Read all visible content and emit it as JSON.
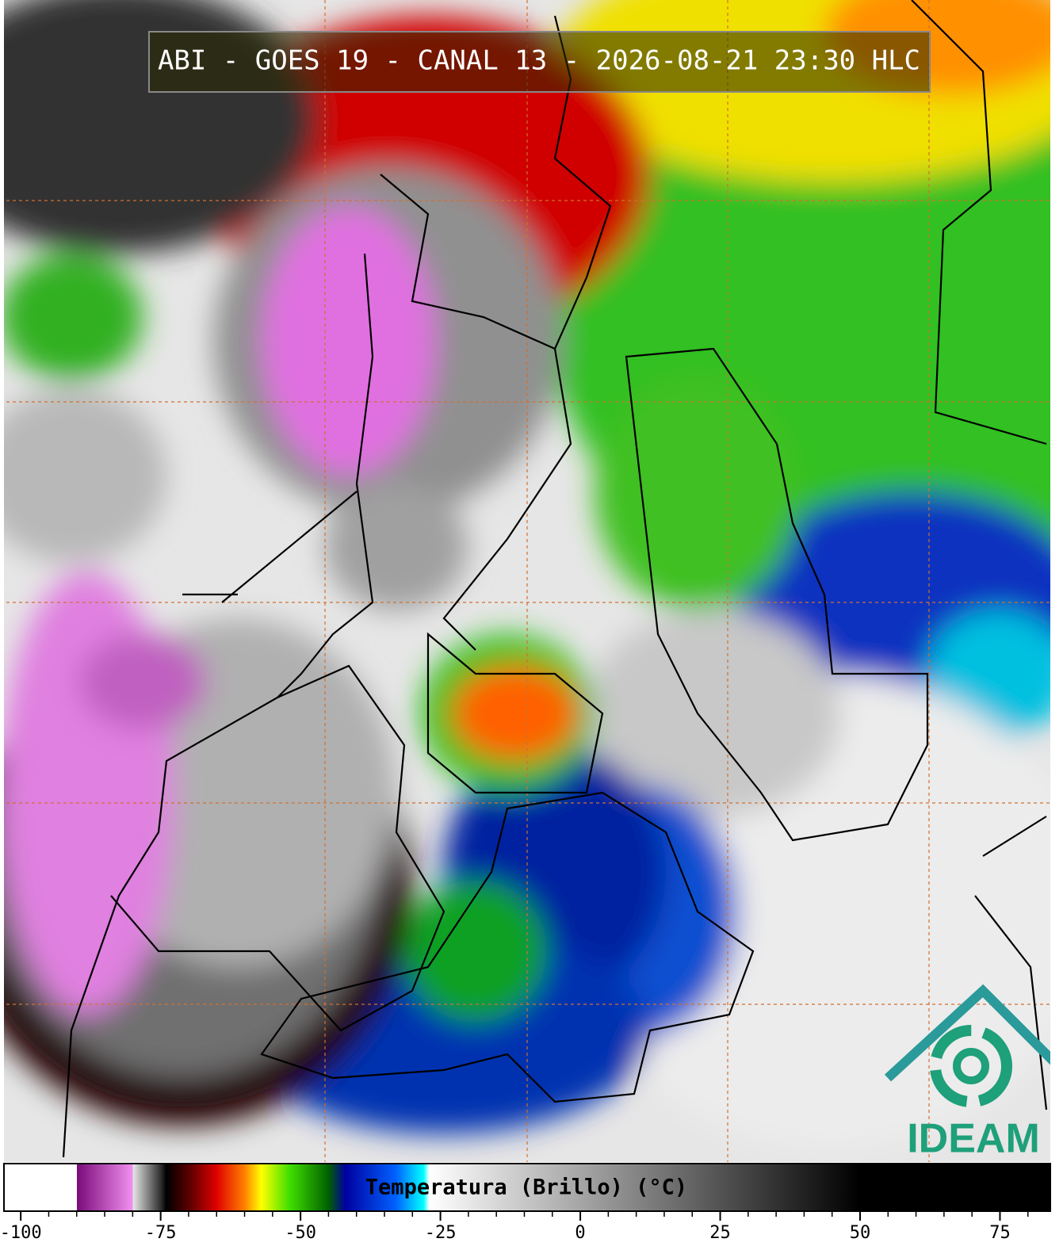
{
  "title": "ABI - GOES 19 - CANAL 13 - 2026-08-21 23:30 HLC",
  "logo": "IDEAM",
  "colorbar": {
    "label": "Temperatura (Brillo) (°C)",
    "lim": [
      -103,
      84
    ],
    "ticks": [
      -100,
      -75,
      -50,
      -25,
      0,
      25,
      50,
      75
    ],
    "minor_ticks": [
      -95,
      -90,
      -85,
      -80,
      -70,
      -65,
      -60,
      -55,
      -45,
      -40,
      -35,
      -30,
      -20,
      -15,
      -10,
      -5,
      5,
      10,
      15,
      20,
      30,
      35,
      40,
      45,
      55,
      60,
      65,
      70,
      80
    ],
    "colorscale": [
      [
        -103,
        "#ffffff"
      ],
      [
        -90,
        "#ffffff"
      ],
      [
        -90,
        "#7a0a7a"
      ],
      [
        -80,
        "#f090f0"
      ],
      [
        -80,
        "#e8e8e8"
      ],
      [
        -75,
        "#303030"
      ],
      [
        -74,
        "#000000"
      ],
      [
        -69,
        "#700000"
      ],
      [
        -65,
        "#e00000"
      ],
      [
        -60,
        "#ff8000"
      ],
      [
        -57,
        "#ffff00"
      ],
      [
        -52,
        "#40e000"
      ],
      [
        -45,
        "#006000"
      ],
      [
        -42,
        "#0000a0"
      ],
      [
        -33,
        "#0060ff"
      ],
      [
        -28,
        "#00ffff"
      ],
      [
        -27,
        "#ffffff"
      ],
      [
        50,
        "#000000"
      ],
      [
        84,
        "#000000"
      ]
    ]
  }
}
